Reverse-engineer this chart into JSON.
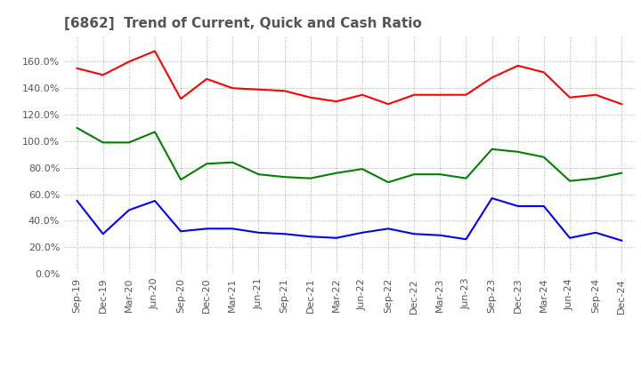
{
  "title": "[6862]  Trend of Current, Quick and Cash Ratio",
  "x_labels": [
    "Sep-19",
    "Dec-19",
    "Mar-20",
    "Jun-20",
    "Sep-20",
    "Dec-20",
    "Mar-21",
    "Jun-21",
    "Sep-21",
    "Dec-21",
    "Mar-22",
    "Jun-22",
    "Sep-22",
    "Dec-22",
    "Mar-23",
    "Jun-23",
    "Sep-23",
    "Dec-23",
    "Mar-24",
    "Jun-24",
    "Sep-24",
    "Dec-24"
  ],
  "current_ratio": [
    1.55,
    1.5,
    1.6,
    1.68,
    1.32,
    1.47,
    1.4,
    1.39,
    1.38,
    1.33,
    1.3,
    1.35,
    1.28,
    1.35,
    1.35,
    1.35,
    1.48,
    1.57,
    1.52,
    1.33,
    1.35,
    1.28
  ],
  "quick_ratio": [
    1.1,
    0.99,
    0.99,
    1.07,
    0.71,
    0.83,
    0.84,
    0.75,
    0.73,
    0.72,
    0.76,
    0.79,
    0.69,
    0.75,
    0.75,
    0.72,
    0.94,
    0.92,
    0.88,
    0.7,
    0.72,
    0.76
  ],
  "cash_ratio": [
    0.55,
    0.3,
    0.48,
    0.55,
    0.32,
    0.34,
    0.34,
    0.31,
    0.3,
    0.28,
    0.27,
    0.31,
    0.34,
    0.3,
    0.29,
    0.26,
    0.57,
    0.51,
    0.51,
    0.27,
    0.31,
    0.25
  ],
  "current_color": "#ff0000",
  "quick_color": "#008000",
  "cash_color": "#0000ff",
  "background_color": "#ffffff",
  "grid_color": "#aaaaaa",
  "ylim": [
    0.0,
    1.8
  ],
  "yticks": [
    0.0,
    0.2,
    0.4,
    0.6,
    0.8,
    1.0,
    1.2,
    1.4,
    1.6
  ],
  "title_fontsize": 11,
  "legend_fontsize": 9,
  "tick_fontsize": 8
}
